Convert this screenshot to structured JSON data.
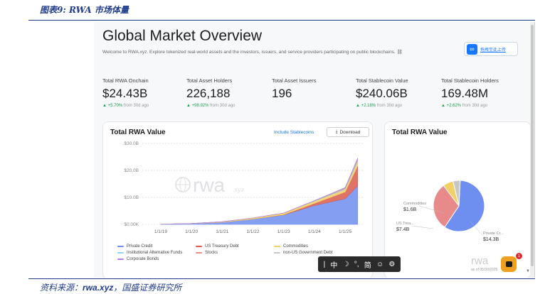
{
  "figure": {
    "caption": "图表9: RWA 市场体量",
    "source_prefix": "资料来源：",
    "source_name": "rwa.xyz",
    "source_suffix": "，国盛证券研究所"
  },
  "page": {
    "title": "Global Market Overview",
    "subtitle": "Welcome to RWA.xyz. Explore tokenized real-world assets and the investors, issuers, and service providers participating on public blockchains. ⛓",
    "upload_button": {
      "label": "拖拽至此上传",
      "icon": "infinity-icon"
    }
  },
  "stats": [
    {
      "label": "Total RWA Onchain",
      "value": "$24.43B",
      "change": "▲ +5.70%",
      "period": "from 30d ago"
    },
    {
      "label": "Total Asset Holders",
      "value": "226,188",
      "change": "▲ +98.92%",
      "period": "from 30d ago"
    },
    {
      "label": "Total Asset Issuers",
      "value": "196",
      "change": "",
      "period": ""
    },
    {
      "label": "Total Stablecoin Value",
      "value": "$240.06B",
      "change": "▲ +2.18%",
      "period": "from 30d ago"
    },
    {
      "label": "Total Stablecoin Holders",
      "value": "169.48M",
      "change": "▲ +2.62%",
      "period": "from 30d ago"
    }
  ],
  "area_card": {
    "title": "Total RWA Value",
    "include_link": "Include Stablecoins",
    "download_label": "Download",
    "watermark": "rwa",
    "watermark_suffix": ".xyz"
  },
  "pie_card": {
    "title": "Total RWA Value",
    "watermark": "rwa",
    "date_text": "as of 05/30/2025"
  },
  "toolbar": {
    "items": [
      "|",
      "中",
      "☽",
      "°,",
      "简",
      "☺",
      "⚙"
    ]
  },
  "chat": {
    "badge": "1"
  },
  "colors": {
    "private_credit": "#6e8ef0",
    "us_treasury": "#d95a4e",
    "institutional_funds": "#8fd3f0",
    "stocks": "#e88a8a",
    "commodities": "#f2d064",
    "non_us_gov": "#c7c7c7",
    "corporate_bonds": "#b07be0",
    "positive": "#1a9e4a",
    "link": "#1677ff"
  },
  "chart_data": [
    {
      "type": "area",
      "title": "Total RWA Value",
      "x": [
        "1/1/19",
        "1/1/20",
        "1/1/21",
        "1/1/22",
        "1/1/23",
        "1/1/24",
        "1/1/25",
        "5/30/25"
      ],
      "ylim": [
        0,
        30
      ],
      "ytick_labels": [
        "$0.00K",
        "$10.0B",
        "$20.0B",
        "$30.0B"
      ],
      "stacked": true,
      "grid": true,
      "series": [
        {
          "name": "Private Credit",
          "values": [
            0.1,
            0.3,
            0.8,
            2.0,
            3.5,
            7.0,
            9.5,
            14.3
          ]
        },
        {
          "name": "US Treasury Debt",
          "values": [
            0,
            0,
            0,
            0,
            0.1,
            0.8,
            2.5,
            7.4
          ]
        },
        {
          "name": "Commodities",
          "values": [
            0,
            0.05,
            0.2,
            0.4,
            0.6,
            0.8,
            1.0,
            1.6
          ]
        },
        {
          "name": "Institutional Alternative Funds",
          "values": [
            0,
            0,
            0,
            0,
            0,
            0.1,
            0.3,
            0.6
          ]
        },
        {
          "name": "Stocks",
          "values": [
            0,
            0,
            0,
            0,
            0,
            0.05,
            0.2,
            0.4
          ]
        },
        {
          "name": "non-US Government Debt",
          "values": [
            0,
            0,
            0,
            0,
            0,
            0.05,
            0.1,
            0.2
          ]
        },
        {
          "name": "Corporate Bonds",
          "values": [
            0,
            0,
            0,
            0,
            0,
            0.02,
            0.05,
            0.1
          ]
        }
      ],
      "legend_position": "bottom"
    },
    {
      "type": "pie",
      "title": "Total RWA Value",
      "categories": [
        "Private Credit",
        "US Treasury Debt",
        "Commodities",
        "Other"
      ],
      "values": [
        14.3,
        7.4,
        1.6,
        1.1
      ],
      "labels": [
        {
          "name": "Private Cr...",
          "value": "$14.3B"
        },
        {
          "name": "US Trea...",
          "value": "$7.4B"
        },
        {
          "name": "Commodities",
          "value": "$1.6B"
        }
      ]
    }
  ]
}
